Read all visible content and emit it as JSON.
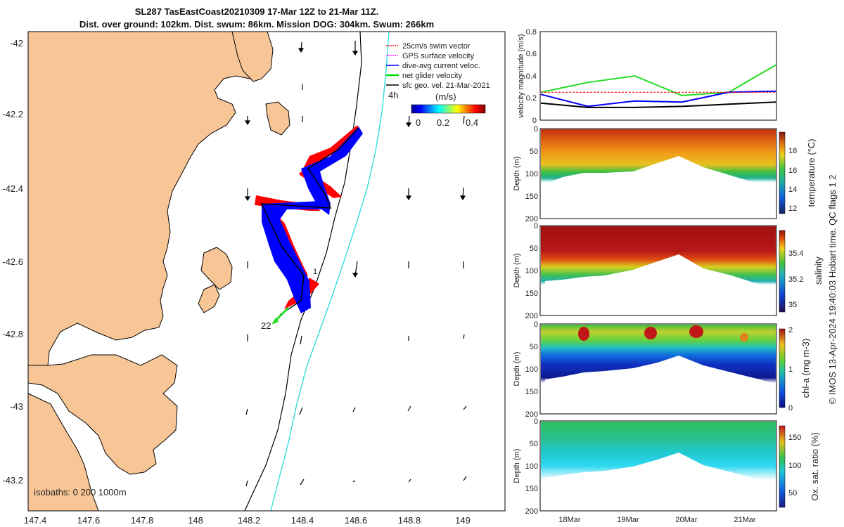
{
  "title": {
    "line1": "SL287 TasEastCoast20210309 17-Mar 12Z to 21-Mar 11Z.",
    "line2": "Dist. over ground: 102km. Dist. swum: 86km. Mission DOG: 304km. Swum: 266km"
  },
  "map": {
    "x_ticks": [
      "147.4",
      "147.6",
      "147.8",
      "148",
      "148.2",
      "148.4",
      "148.6",
      "148.8",
      "149"
    ],
    "y_ticks": [
      "-42",
      "-42.2",
      "-42.4",
      "-42.6",
      "-42.8",
      "-43",
      "-43.2"
    ],
    "legend": [
      {
        "label": "25cm/s swim vector",
        "color": "#ff0000"
      },
      {
        "label": "GPS surface velocity",
        "color": "#ff00ff"
      },
      {
        "label": "dive-avg current veloc.",
        "color": "#0000ff"
      },
      {
        "label": "net glider velocity",
        "color": "#00dd00"
      },
      {
        "label": "sfc geo. vel. 21-Mar-2021",
        "color": "#000000"
      }
    ],
    "time_label": "4h",
    "colorbar": {
      "unit": "(m/s)",
      "ticks": [
        "0",
        "0.2",
        "0.4"
      ]
    },
    "isobaths": "isobaths: 0   200  1000m",
    "waypoints": [
      "1",
      "22"
    ],
    "colors": {
      "land": "#f8c696",
      "sea": "#ffffff",
      "isobath_200": "#000000",
      "isobath_1000": "#33dddd",
      "track": "#0000ff",
      "swim": "#ff0000",
      "net": "#22dd22"
    }
  },
  "velocity_panel": {
    "ylabel": "velocity magnitude (m/s)",
    "y_ticks": [
      "0",
      "0.2",
      "0.4",
      "0.6",
      "0.8"
    ]
  },
  "sections": [
    {
      "label": "temperature (°C)",
      "ticks": [
        "12",
        "14",
        "16",
        "18"
      ]
    },
    {
      "label": "salinity",
      "ticks": [
        "35",
        "35.2",
        "35.4"
      ]
    },
    {
      "label": "chl-a (mg m-3)",
      "ticks": [
        "0",
        "1",
        "2"
      ]
    },
    {
      "label": "Ox. sat. ratio (%)",
      "ticks": [
        "50",
        "100",
        "150"
      ]
    }
  ],
  "depth_axis": {
    "label": "Depth (m)",
    "ticks": [
      "0",
      "50",
      "100",
      "150",
      "200"
    ]
  },
  "time_ticks": [
    "18Mar",
    "19Mar",
    "20Mar",
    "21Mar"
  ],
  "footer": "© IMOS 13-Apr-2024 19:40:03 Hobart time. QC flags 1  2",
  "chart_data": [
    {
      "type": "line",
      "title": "velocity magnitude",
      "ylabel": "velocity magnitude (m/s)",
      "ylim": [
        0,
        0.8
      ],
      "x": [
        "17-Mar 12Z",
        "18Mar",
        "19Mar",
        "20Mar",
        "21Mar",
        "21-Mar 11Z"
      ],
      "series": [
        {
          "name": "net glider velocity",
          "color": "#22dd22",
          "values": [
            0.25,
            0.34,
            0.4,
            0.22,
            0.25,
            0.5
          ]
        },
        {
          "name": "dive-avg current veloc.",
          "color": "#0000ff",
          "values": [
            0.23,
            0.12,
            0.17,
            0.16,
            0.25,
            0.26
          ]
        },
        {
          "name": "25cm/s swim vector",
          "color": "#ff0000",
          "values": [
            0.25,
            0.25,
            0.25,
            0.25,
            0.25,
            0.25
          ]
        },
        {
          "name": "sfc geo. vel.",
          "color": "#000000",
          "values": [
            0.15,
            0.11,
            0.11,
            0.12,
            0.14,
            0.16
          ]
        }
      ]
    },
    {
      "type": "heatmap",
      "title": "temperature (°C)",
      "ylabel": "Depth (m)",
      "ylim": [
        200,
        0
      ],
      "clim": [
        11,
        19.5
      ]
    },
    {
      "type": "heatmap",
      "title": "salinity",
      "ylabel": "Depth (m)",
      "ylim": [
        200,
        0
      ],
      "clim": [
        34.9,
        35.5
      ]
    },
    {
      "type": "heatmap",
      "title": "chl-a (mg m-3)",
      "ylabel": "Depth (m)",
      "ylim": [
        200,
        0
      ],
      "clim": [
        0,
        2
      ]
    },
    {
      "type": "heatmap",
      "title": "Ox. sat. ratio (%)",
      "ylabel": "Depth (m)",
      "ylim": [
        200,
        0
      ],
      "clim": [
        20,
        175
      ]
    }
  ]
}
